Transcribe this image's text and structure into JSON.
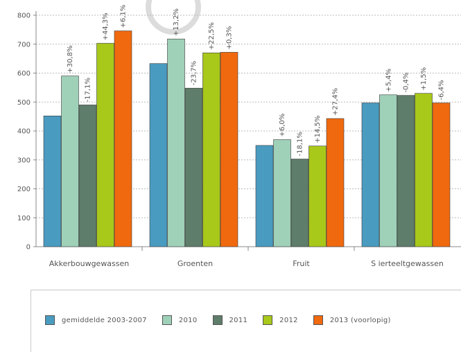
{
  "chart_data": {
    "type": "bar",
    "categories": [
      "Akkerbouwgewassen",
      "Groenten",
      "Fruit",
      "S ierteeltgewassen"
    ],
    "series": [
      {
        "name": "gemiddelde 2003-2007",
        "color": "#4a9bc0",
        "values": [
          452,
          633,
          350,
          497
        ]
      },
      {
        "name": "2010",
        "color": "#9fd0b8",
        "values": [
          590,
          718,
          370,
          525
        ]
      },
      {
        "name": "2011",
        "color": "#5e7d6a",
        "values": [
          490,
          548,
          303,
          523
        ]
      },
      {
        "name": "2012",
        "color": "#a8c81a",
        "values": [
          703,
          670,
          348,
          530
        ]
      },
      {
        "name": "2013 (voorlopig)",
        "color": "#f0690f",
        "values": [
          746,
          672,
          443,
          497
        ]
      }
    ],
    "data_labels": [
      [
        null,
        "+30,8%",
        "-17,1%",
        "+44,3%",
        "+6,1%"
      ],
      [
        null,
        "+13,2%",
        "-23,7%",
        "+22,5%",
        "+0,3%"
      ],
      [
        null,
        "+6,0%",
        "-18,1%",
        "+14,5%",
        "+27,4%"
      ],
      [
        null,
        "+5,4%",
        "-0,4%",
        "+1,5%",
        "-6,4%"
      ]
    ],
    "ylim": [
      0,
      800
    ],
    "yticks": [
      0,
      100,
      200,
      300,
      400,
      500,
      600,
      700,
      800
    ],
    "grid": true,
    "legend_position": "bottom",
    "title": "",
    "xlabel": "",
    "ylabel": ""
  }
}
